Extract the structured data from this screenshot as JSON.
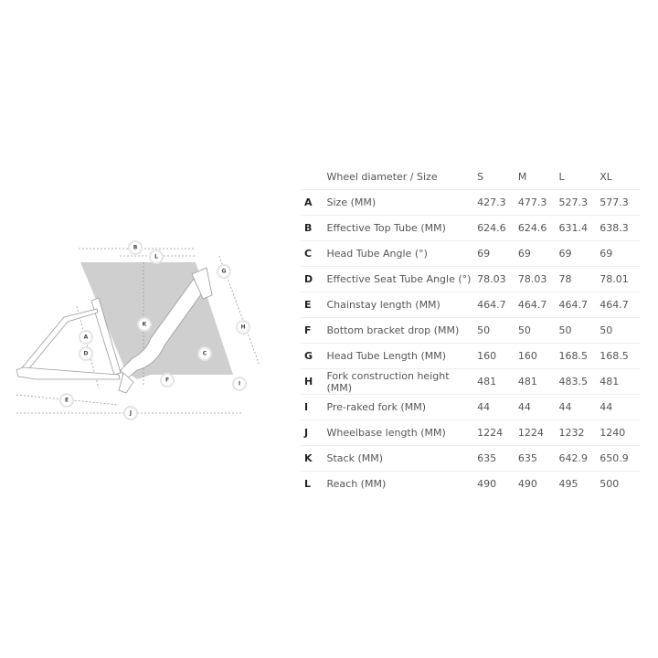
{
  "diagram": {
    "labels": [
      "A",
      "B",
      "C",
      "D",
      "E",
      "F",
      "G",
      "H",
      "I",
      "J",
      "K",
      "L"
    ],
    "colors": {
      "shape": "#cfcfcf",
      "frame": "#ffffff",
      "frame_stroke": "#9a9a9a"
    }
  },
  "table": {
    "header": {
      "label": "Wheel diameter / Size",
      "sizes": [
        "S",
        "M",
        "L",
        "XL"
      ]
    },
    "rows": [
      {
        "letter": "A",
        "label": "Size (MM)",
        "values": [
          "427.3",
          "477.3",
          "527.3",
          "577.3"
        ]
      },
      {
        "letter": "B",
        "label": "Effective Top Tube (MM)",
        "values": [
          "624.6",
          "624.6",
          "631.4",
          "638.3"
        ]
      },
      {
        "letter": "C",
        "label": "Head Tube Angle (°)",
        "values": [
          "69",
          "69",
          "69",
          "69"
        ]
      },
      {
        "letter": "D",
        "label": "Effective Seat Tube Angle (°)",
        "values": [
          "78.03",
          "78.03",
          "78",
          "78.01"
        ]
      },
      {
        "letter": "E",
        "label": "Chainstay length (MM)",
        "values": [
          "464.7",
          "464.7",
          "464.7",
          "464.7"
        ]
      },
      {
        "letter": "F",
        "label": "Bottom bracket drop (MM)",
        "values": [
          "50",
          "50",
          "50",
          "50"
        ]
      },
      {
        "letter": "G",
        "label": "Head Tube Length (MM)",
        "values": [
          "160",
          "160",
          "168.5",
          "168.5"
        ]
      },
      {
        "letter": "H",
        "label": "Fork construction height (MM)",
        "values": [
          "481",
          "481",
          "483.5",
          "481"
        ]
      },
      {
        "letter": "I",
        "label": "Pre-raked fork (MM)",
        "values": [
          "44",
          "44",
          "44",
          "44"
        ]
      },
      {
        "letter": "J",
        "label": "Wheelbase length (MM)",
        "values": [
          "1224",
          "1224",
          "1232",
          "1240"
        ]
      },
      {
        "letter": "K",
        "label": "Stack (MM)",
        "values": [
          "635",
          "635",
          "642.9",
          "650.9"
        ]
      },
      {
        "letter": "L",
        "label": "Reach (MM)",
        "values": [
          "490",
          "490",
          "495",
          "500"
        ]
      }
    ]
  }
}
